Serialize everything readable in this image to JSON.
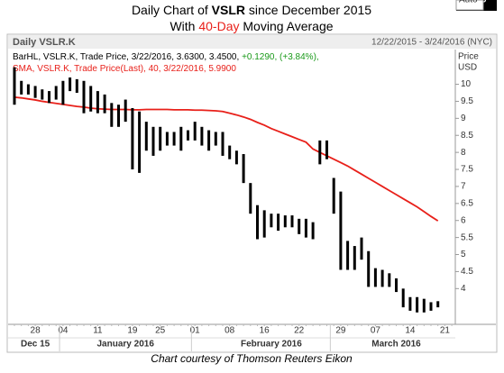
{
  "chart_data": {
    "type": "hl-bar",
    "title": [
      {
        "text": "Daily Chart of "
      },
      {
        "text": "VSLR",
        "bold": true
      },
      {
        "text": " since December 2015"
      }
    ],
    "subtitle": [
      {
        "text": "With "
      },
      {
        "text": "40-Day",
        "color": "#e8201a"
      },
      {
        "text": " Moving Average"
      }
    ],
    "panel_title": "Daily VSLR.K",
    "date_range": "12/22/2015 - 3/24/2016 (NYC)",
    "legend": [
      [
        {
          "text": "BarHL, VSLR.K, Trade Price, 3/22/2016, 3.6300, 3.4500, ",
          "color": "#000000"
        },
        {
          "text": "+0.1290, (+3.84%),",
          "color": "#1a9a1a"
        }
      ],
      [
        {
          "text": "SMA, VSLR.K, Trade Price(Last), 40, 3/22/2016, 5.9900",
          "color": "#e8201a"
        }
      ]
    ],
    "y_axis_label": [
      "Price",
      "USD"
    ],
    "categories": [
      null,
      null,
      null,
      "28",
      null,
      null,
      null,
      "04",
      null,
      null,
      null,
      null,
      "11",
      null,
      null,
      null,
      null,
      "19",
      null,
      null,
      null,
      "25",
      null,
      null,
      null,
      null,
      "01",
      null,
      null,
      null,
      null,
      "08",
      null,
      null,
      null,
      null,
      "16",
      null,
      null,
      null,
      null,
      "22",
      null,
      null,
      null,
      null,
      null,
      "29",
      null,
      null,
      null,
      null,
      "07",
      null,
      null,
      null,
      null,
      "14",
      null,
      null,
      null,
      null,
      "21",
      null
    ],
    "month_labels": [
      null,
      null,
      null,
      "Dec 15",
      null,
      null,
      null,
      null,
      null,
      null,
      null,
      null,
      null,
      null,
      null,
      null,
      "January 2016",
      null,
      null,
      null,
      null,
      null,
      null,
      null,
      null,
      null,
      null,
      null,
      null,
      null,
      null,
      null,
      null,
      null,
      null,
      null,
      null,
      "February 2016",
      null,
      null,
      null,
      null,
      null,
      null,
      null,
      null,
      null,
      null,
      null,
      null,
      null,
      null,
      null,
      null,
      null,
      "March 2016",
      null,
      null,
      null,
      null,
      null,
      null
    ],
    "bars": {
      "color": "#000000",
      "high": [
        10.5,
        10.1,
        10.0,
        9.95,
        9.85,
        9.8,
        9.95,
        10.1,
        10.2,
        10.15,
        10.1,
        9.95,
        9.8,
        9.7,
        9.45,
        9.4,
        9.55,
        9.3,
        9.2,
        8.9,
        8.75,
        8.75,
        8.6,
        8.6,
        8.75,
        8.65,
        8.9,
        8.75,
        8.65,
        8.6,
        8.6,
        8.2,
        8.05,
        7.95,
        7.1,
        6.45,
        6.3,
        6.2,
        6.2,
        6.15,
        6.15,
        6.05,
        6.05,
        5.95,
        8.35,
        8.35,
        7.25,
        6.85,
        5.4,
        5.25,
        5.5,
        5.1,
        4.6,
        4.55,
        4.45,
        4.3,
        4.0,
        3.75,
        3.75,
        3.7,
        3.6,
        3.63
      ],
      "low": [
        9.4,
        9.7,
        9.7,
        9.6,
        9.55,
        9.45,
        9.55,
        9.4,
        9.8,
        9.75,
        9.15,
        9.2,
        9.15,
        9.15,
        8.75,
        8.75,
        8.9,
        7.5,
        7.4,
        8.05,
        7.9,
        8.05,
        8.2,
        8.2,
        8.05,
        8.35,
        8.35,
        8.2,
        8.05,
        8.2,
        7.9,
        7.8,
        7.65,
        7.1,
        6.2,
        5.45,
        5.5,
        5.8,
        5.7,
        5.8,
        5.8,
        5.6,
        5.5,
        5.45,
        7.65,
        7.8,
        6.2,
        4.55,
        4.55,
        4.55,
        4.85,
        4.05,
        4.05,
        4.05,
        4.05,
        3.9,
        3.45,
        3.35,
        3.3,
        3.3,
        3.35,
        3.45
      ]
    },
    "sma": {
      "color": "#e8201a",
      "values": [
        9.62,
        9.6,
        9.57,
        9.54,
        9.5,
        9.47,
        9.44,
        9.41,
        9.38,
        9.35,
        9.33,
        9.3,
        9.28,
        9.27,
        9.26,
        9.26,
        9.26,
        9.25,
        9.25,
        9.26,
        9.26,
        9.26,
        9.26,
        9.25,
        9.25,
        9.25,
        9.24,
        9.24,
        9.23,
        9.22,
        9.2,
        9.15,
        9.1,
        9.04,
        8.97,
        8.88,
        8.8,
        8.7,
        8.62,
        8.54,
        8.46,
        8.38,
        8.3,
        8.1,
        8.0,
        7.9,
        7.8,
        7.7,
        7.6,
        7.48,
        7.36,
        7.24,
        7.12,
        7.0,
        6.88,
        6.76,
        6.64,
        6.52,
        6.4,
        6.26,
        6.12,
        5.99
      ]
    },
    "sma_last_label": "5.9900",
    "price_last_label": "3.4500",
    "scale_mode": "Auto",
    "ylim": [
      2.95,
      11.02
    ],
    "yticks": [
      4,
      4.5,
      5,
      5.5,
      6,
      6.5,
      7,
      7.5,
      8,
      8.5,
      9,
      9.5,
      10
    ],
    "footer": "Chart courtesy of Thomson Reuters Eikon"
  }
}
